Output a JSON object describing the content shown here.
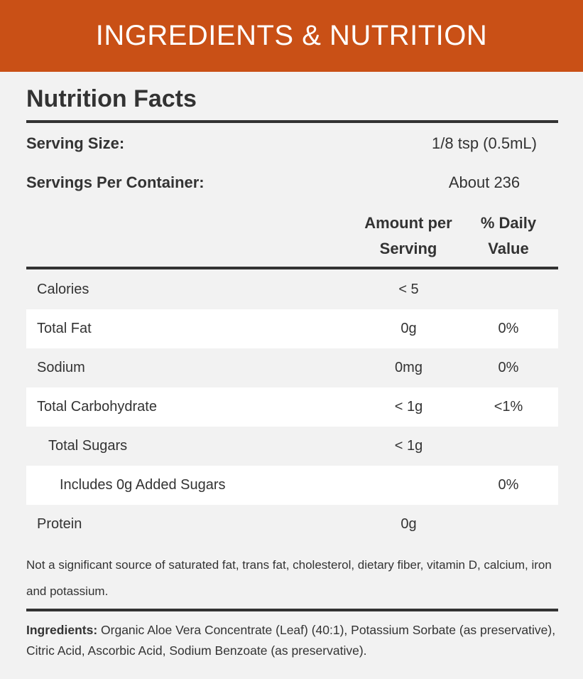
{
  "banner": {
    "title": "INGREDIENTS & NUTRITION"
  },
  "facts": {
    "title": "Nutrition Facts",
    "serving_size_label": "Serving Size:",
    "serving_size_value": "1/8 tsp (0.5mL)",
    "servings_per_container_label": "Servings Per Container:",
    "servings_per_container_value": "About 236",
    "col_amount_line1": "Amount per",
    "col_amount_line2": "Serving",
    "col_dv_line1": "% Daily",
    "col_dv_line2": "Value",
    "rows": [
      {
        "label": "Calories",
        "amount": "< 5",
        "dv": ""
      },
      {
        "label": "Total Fat",
        "amount": "0g",
        "dv": "0%"
      },
      {
        "label": "Sodium",
        "amount": "0mg",
        "dv": "0%"
      },
      {
        "label": "Total Carbohydrate",
        "amount": "< 1g",
        "dv": "<1%"
      },
      {
        "label": "Total Sugars",
        "amount": "< 1g",
        "dv": ""
      },
      {
        "label": "Includes 0g Added Sugars",
        "amount": "",
        "dv": "0%"
      },
      {
        "label": "Protein",
        "amount": "0g",
        "dv": ""
      }
    ],
    "note": "Not a significant source of saturated fat, trans fat, cholesterol, dietary fiber, vitamin D, calcium, iron and potassium."
  },
  "ingredients": {
    "label": "Ingredients:",
    "text": " Organic Aloe Vera Concentrate (Leaf) (40:1), Potassium Sorbate (as preservative), Citric Acid, Ascorbic Acid, Sodium Benzoate (as preservative)."
  },
  "colors": {
    "banner": "#c95016",
    "background": "#f2f2f2",
    "text": "#333333"
  }
}
